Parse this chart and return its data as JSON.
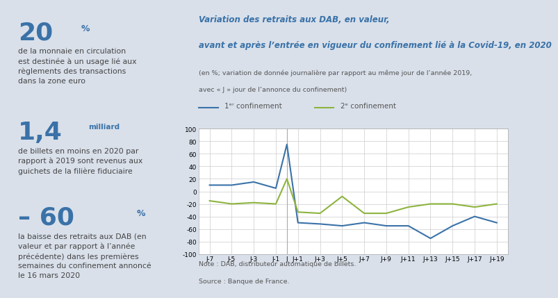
{
  "bg_color": "#d9e0ea",
  "chart_bg_color": "#ffffff",
  "title_line1": "Variation des retraits aux DAB, en valeur,",
  "title_line2": "avant et après l’entrée en vigueur du confinement lié à la Covid-19, en 2020",
  "subtitle1": "(en %; variation de donnée journalière par rapport au même jour de l’année 2019,",
  "subtitle2": "avec « J » jour de l’annonce du confinement)",
  "note": "Note : DAB, distributeur automatique de billets.",
  "source": "Source : Banque de France.",
  "blue_color": "#3a72a8",
  "green_color": "#8db43e",
  "grid_color": "#cccccc",
  "vline_color": "#aaaaaa",
  "yticks": [
    -100,
    -80,
    -60,
    -40,
    -20,
    0,
    20,
    40,
    60,
    80,
    100
  ],
  "x_tick_positions": [
    -7,
    -5,
    -3,
    -1,
    0,
    1,
    3,
    5,
    7,
    9,
    11,
    13,
    15,
    17,
    19
  ],
  "x_tick_labels": [
    "J-7",
    "J-5",
    "J-3",
    "J-1",
    "J",
    "J+1",
    "J+3",
    "J+5",
    "J+7",
    "J+9",
    "J+11",
    "J+13",
    "J+15",
    "J+17",
    "J+19"
  ],
  "blue_x": [
    -7,
    -5,
    -3,
    -1,
    0,
    1,
    3,
    5,
    7,
    9,
    11,
    13,
    15,
    17,
    19
  ],
  "blue_y": [
    10,
    10,
    15,
    5,
    75,
    -50,
    -52,
    -55,
    -50,
    -55,
    -55,
    -75,
    -55,
    -40,
    -50
  ],
  "green_x": [
    -7,
    -5,
    -3,
    -1,
    0,
    1,
    3,
    5,
    7,
    9,
    11,
    13,
    15,
    17,
    19
  ],
  "green_y": [
    -15,
    -20,
    -18,
    -20,
    20,
    -33,
    -35,
    -8,
    -35,
    -35,
    -25,
    -20,
    -20,
    -25,
    -20
  ],
  "stat1_big": "20",
  "stat1_sup": "%",
  "stat1_body": "de la monnaie en circulation\nest destinée à un usage lié aux\nrèglements des transactions\ndans la zone euro",
  "stat2_big": "1,4",
  "stat2_sup": "milliard",
  "stat2_body": "de billets en moins en 2020 par\nrapport à 2019 sont revenus aux\nguichets de la filière fiduciaire",
  "stat3_big": "– 60",
  "stat3_sup": "%",
  "stat3_body": "la baisse des retraits aux DAB (en\nvaleur et par rapport à l’année\nprécédente) dans les premières\nsemaines du confinement annoncé\nle 16 mars 2020"
}
